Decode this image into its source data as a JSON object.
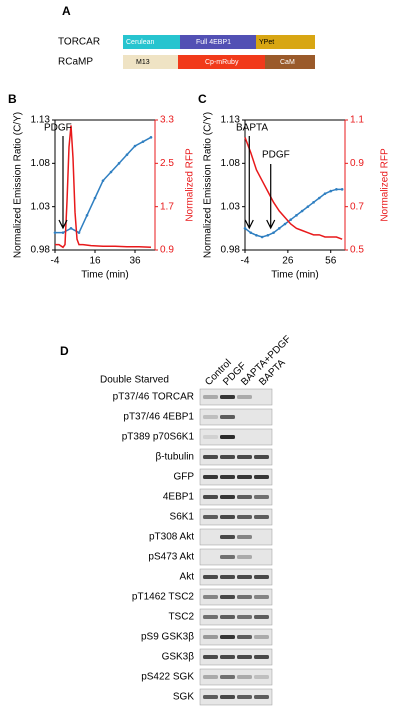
{
  "panel_a": {
    "label": "A",
    "constructs": [
      {
        "name": "TORCAR",
        "domains": [
          "Cerulean",
          "Full 4EBP1",
          "YPet"
        ]
      },
      {
        "name": "RCaMP",
        "domains": [
          "M13",
          "Cp-mRuby",
          "CaM"
        ]
      }
    ]
  },
  "chart_data": [
    {
      "type": "line",
      "label": "B",
      "xlabel": "Time (min)",
      "ylabel": "Normalized Emission Ratio (C/Y)",
      "y2label": "Normalized RFP",
      "annotations": [
        "PDGF"
      ],
      "xlim": [
        -4,
        46
      ],
      "xticks": [
        -4,
        16,
        36
      ],
      "ylim": [
        0.98,
        1.13
      ],
      "yticks": [
        0.98,
        1.03,
        1.08,
        1.13
      ],
      "y2lim": [
        0.9,
        3.3
      ],
      "y2ticks": [
        0.9,
        1.7,
        2.5,
        3.3
      ],
      "series": [
        {
          "color": "#2f7fc1",
          "x": [
            -4,
            0,
            4,
            8,
            12,
            16,
            20,
            24,
            28,
            32,
            36,
            40,
            44
          ],
          "values": [
            1.0,
            1.0,
            1.005,
            1.0,
            1.02,
            1.04,
            1.06,
            1.07,
            1.08,
            1.09,
            1.1,
            1.105,
            1.11
          ]
        },
        {
          "color": "#e8191b",
          "axis": "y2",
          "x": [
            -4,
            -2,
            0,
            1,
            2,
            3,
            4,
            5,
            6,
            7,
            8,
            10,
            14,
            20,
            26,
            32,
            38,
            44
          ],
          "values": [
            1.0,
            1.0,
            0.95,
            1.0,
            1.8,
            2.8,
            3.2,
            2.6,
            1.6,
            1.1,
            1.0,
            1.0,
            0.98,
            0.97,
            0.97,
            0.96,
            0.96,
            0.95
          ]
        }
      ]
    },
    {
      "type": "line",
      "label": "C",
      "xlabel": "Time (min)",
      "ylabel": "Normalized Emission Ratio (C/Y)",
      "y2label": "Normalized RFP",
      "annotations": [
        "BAPTA",
        "PDGF"
      ],
      "xlim": [
        -4,
        66
      ],
      "xticks": [
        -4,
        26,
        56
      ],
      "ylim": [
        0.98,
        1.13
      ],
      "yticks": [
        0.98,
        1.03,
        1.08,
        1.13
      ],
      "y2lim": [
        0.5,
        1.1
      ],
      "y2ticks": [
        0.5,
        0.7,
        0.9,
        1.1
      ],
      "series": [
        {
          "color": "#2f7fc1",
          "x": [
            -4,
            0,
            4,
            8,
            12,
            16,
            20,
            24,
            28,
            32,
            36,
            40,
            44,
            48,
            52,
            56,
            60,
            64
          ],
          "values": [
            1.005,
            1.0,
            0.997,
            0.995,
            0.997,
            1.0,
            1.005,
            1.01,
            1.015,
            1.02,
            1.025,
            1.03,
            1.035,
            1.04,
            1.045,
            1.048,
            1.05,
            1.05
          ]
        },
        {
          "color": "#e8191b",
          "axis": "y2",
          "x": [
            -4,
            0,
            4,
            8,
            12,
            16,
            20,
            24,
            28,
            32,
            36,
            40,
            44,
            48,
            52,
            56,
            60,
            64
          ],
          "values": [
            1.02,
            0.95,
            0.87,
            0.82,
            0.77,
            0.72,
            0.68,
            0.65,
            0.62,
            0.6,
            0.59,
            0.58,
            0.57,
            0.57,
            0.56,
            0.56,
            0.56,
            0.55
          ]
        }
      ]
    }
  ],
  "panel_d": {
    "label": "D",
    "condition": "Double Starved",
    "lanes": [
      "Control",
      "PDGF",
      "BAPTA+PDGF",
      "BAPTA"
    ],
    "rows": [
      "pT37/46 TORCAR",
      "pT37/46 4EBP1",
      "pT389 p70S6K1",
      "β-tubulin",
      "GFP",
      "4EBP1",
      "S6K1",
      "pT308 Akt",
      "pS473 Akt",
      "Akt",
      "pT1462  TSC2",
      "TSC2",
      "pS9 GSK3β",
      "GSK3β",
      "pS422 SGK",
      "SGK"
    ]
  }
}
